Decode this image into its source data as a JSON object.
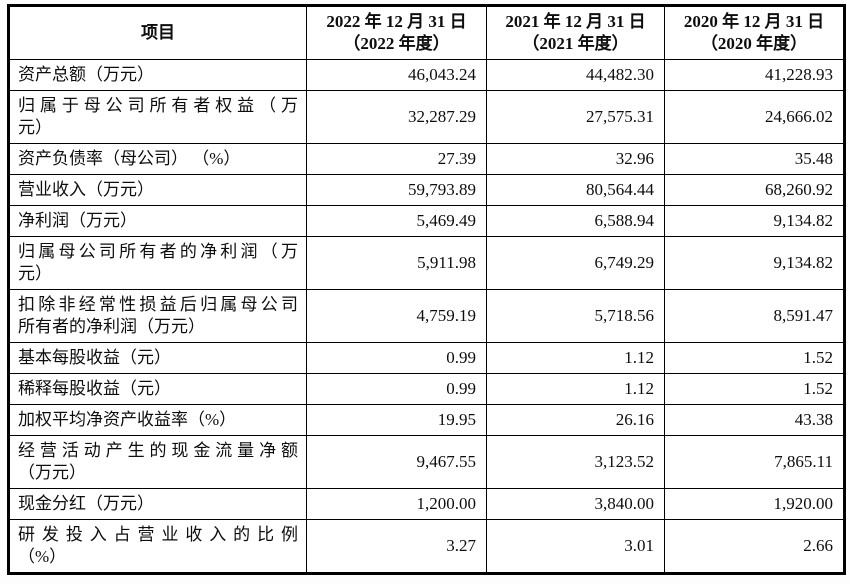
{
  "page": {
    "background_color": "#fdfdfd",
    "table_border_color": "#000000",
    "text_color": "#0d0d0d"
  },
  "table": {
    "header": {
      "item_label": "项目",
      "periods": [
        {
          "line1": "2022 年 12 月 31 日",
          "line2": "（2022 年度）"
        },
        {
          "line1": "2021 年 12 月 31 日",
          "line2": "（2021 年度）"
        },
        {
          "line1": "2020 年 12 月 31 日",
          "line2": "（2020 年度）"
        }
      ]
    },
    "rows": [
      {
        "label_lines": [
          "资产总额（万元）"
        ],
        "values": [
          "46,043.24",
          "44,482.30",
          "41,228.93"
        ]
      },
      {
        "label_lines": [
          "归属于母公司所有者权益（万",
          "元）"
        ],
        "values": [
          "32,287.29",
          "27,575.31",
          "24,666.02"
        ]
      },
      {
        "label_lines": [
          "资产负债率（母公司） （%）"
        ],
        "values": [
          "27.39",
          "32.96",
          "35.48"
        ]
      },
      {
        "label_lines": [
          "营业收入（万元）"
        ],
        "values": [
          "59,793.89",
          "80,564.44",
          "68,260.92"
        ]
      },
      {
        "label_lines": [
          "净利润（万元）"
        ],
        "values": [
          "5,469.49",
          "6,588.94",
          "9,134.82"
        ]
      },
      {
        "label_lines": [
          "归属母公司所有者的净利润（万",
          "元）"
        ],
        "values": [
          "5,911.98",
          "6,749.29",
          "9,134.82"
        ]
      },
      {
        "label_lines": [
          "扣除非经常性损益后归属母公司",
          "所有者的净利润（万元）"
        ],
        "values": [
          "4,759.19",
          "5,718.56",
          "8,591.47"
        ]
      },
      {
        "label_lines": [
          "基本每股收益（元）"
        ],
        "values": [
          "0.99",
          "1.12",
          "1.52"
        ]
      },
      {
        "label_lines": [
          "稀释每股收益（元）"
        ],
        "values": [
          "0.99",
          "1.12",
          "1.52"
        ]
      },
      {
        "label_lines": [
          "加权平均净资产收益率（%）"
        ],
        "values": [
          "19.95",
          "26.16",
          "43.38"
        ]
      },
      {
        "label_lines": [
          "经营活动产生的现金流量净额",
          "（万元）"
        ],
        "values": [
          "9,467.55",
          "3,123.52",
          "7,865.11"
        ]
      },
      {
        "label_lines": [
          "现金分红（万元）"
        ],
        "values": [
          "1,200.00",
          "3,840.00",
          "1,920.00"
        ]
      },
      {
        "label_lines": [
          "研发投入占营业收入的比例",
          "（%）"
        ],
        "values": [
          "3.27",
          "3.01",
          "2.66"
        ]
      }
    ]
  }
}
